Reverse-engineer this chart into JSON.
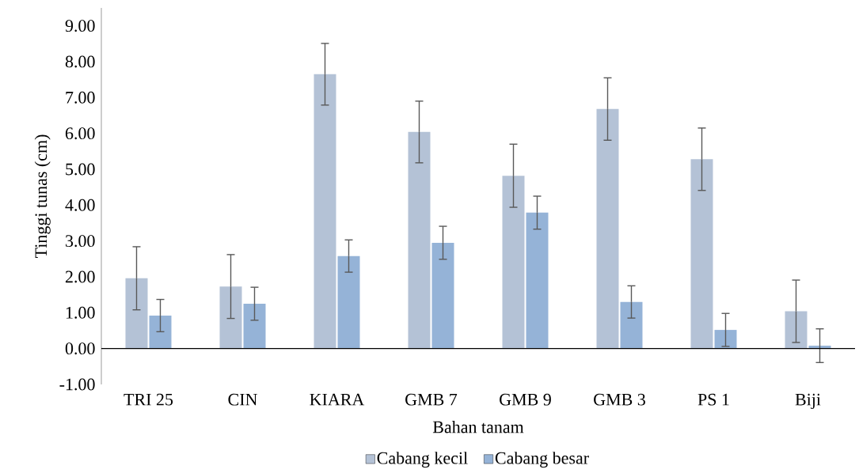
{
  "chart_data": {
    "type": "bar",
    "xlabel": "Bahan tanam",
    "ylabel": "Tinggi tunas (cm)",
    "categories": [
      "TRI 25",
      "CIN",
      "KIARA",
      "GMB 7",
      "GMB 9",
      "GMB 3",
      "PS 1",
      "Biji"
    ],
    "series": [
      {
        "name": "Cabang kecil",
        "color": "#b4c2d6",
        "values": [
          1.96,
          1.73,
          7.65,
          6.04,
          4.82,
          6.68,
          5.28,
          1.04
        ],
        "errors": [
          0.88,
          0.89,
          0.86,
          0.86,
          0.88,
          0.87,
          0.87,
          0.87
        ]
      },
      {
        "name": "Cabang besar",
        "color": "#95b3d7",
        "values": [
          0.92,
          1.25,
          2.58,
          2.95,
          3.79,
          1.3,
          0.52,
          0.08
        ],
        "errors": [
          0.45,
          0.46,
          0.45,
          0.46,
          0.46,
          0.45,
          0.46,
          0.47
        ]
      }
    ],
    "ylim": [
      -1,
      9.5
    ],
    "yticks": [
      {
        "value": -1,
        "label": "-1.00"
      },
      {
        "value": 0,
        "label": "0.00"
      },
      {
        "value": 1,
        "label": "1.00"
      },
      {
        "value": 2,
        "label": "2.00"
      },
      {
        "value": 3,
        "label": "3.00"
      },
      {
        "value": 4,
        "label": "4.00"
      },
      {
        "value": 5,
        "label": "5.00"
      },
      {
        "value": 6,
        "label": "6.00"
      },
      {
        "value": 7,
        "label": "7.00"
      },
      {
        "value": 8,
        "label": "8.00"
      },
      {
        "value": 9,
        "label": "9.00"
      }
    ],
    "grid": false,
    "legend": "bottom"
  }
}
